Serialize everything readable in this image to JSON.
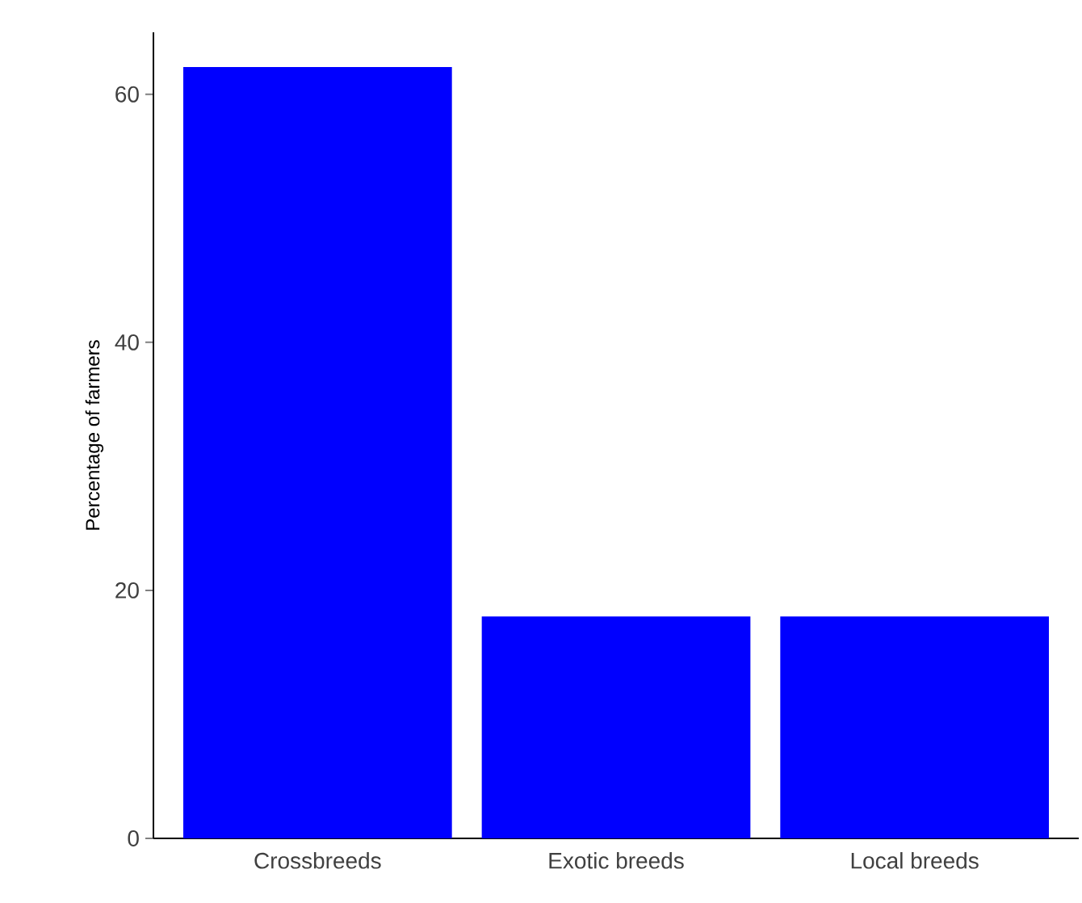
{
  "chart_data": {
    "type": "bar",
    "ylabel": "Percentage of farmers",
    "categories": [
      "Crossbreeds",
      "Exotic breeds",
      "Local breeds"
    ],
    "values": [
      62.2,
      17.9,
      17.9
    ],
    "color": "#0000ff",
    "ylim": [
      0,
      65
    ],
    "yticks": [
      0,
      20,
      40,
      60
    ],
    "grid": false
  }
}
